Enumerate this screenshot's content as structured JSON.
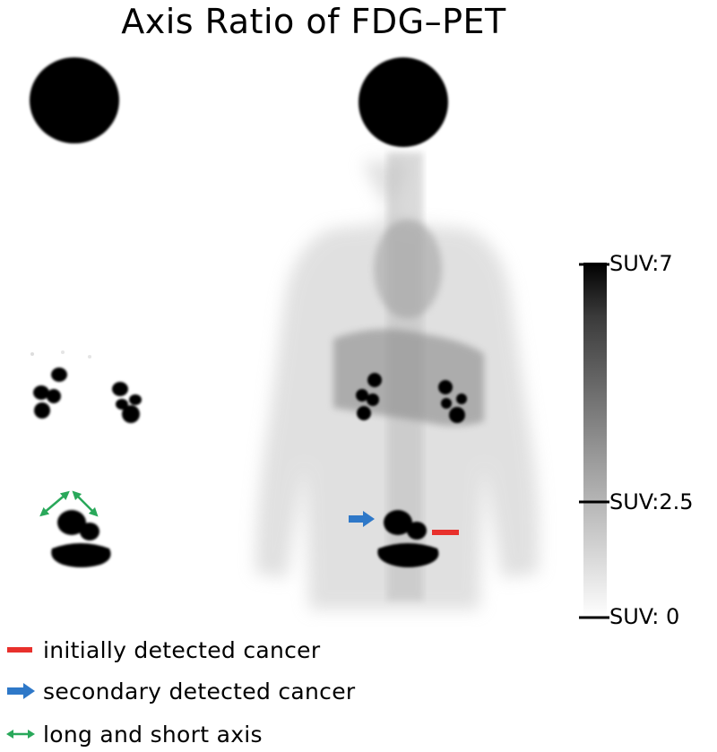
{
  "title": "Axis Ratio of FDG–PET",
  "scale": {
    "max_label": "SUV:7",
    "mid_label": "SUV:2.5",
    "min_label": "SUV: 0"
  },
  "legend": [
    {
      "glyph": "red-bar-icon",
      "color": "#e8302c",
      "label": "initially detected cancer"
    },
    {
      "glyph": "blue-arrow-icon",
      "color": "#2e78c8",
      "label": "secondary detected cancer"
    },
    {
      "glyph": "green-double-arrow-icon",
      "color": "#29a85a",
      "label": "long and short axis"
    }
  ]
}
